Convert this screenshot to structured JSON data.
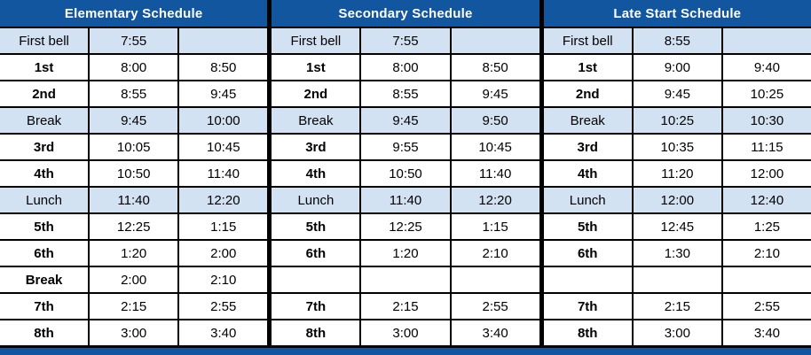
{
  "colors": {
    "header_bg": "#11569E",
    "header_text": "#FFFFFF",
    "highlight_bg": "#D3E2F3",
    "border": "#000000",
    "cell_text": "#000000"
  },
  "tables": [
    {
      "title": "Elementary Schedule",
      "rows": [
        {
          "label": "First bell",
          "start": "7:55",
          "end": "",
          "highlight": true,
          "bold": false
        },
        {
          "label": "1st",
          "start": "8:00",
          "end": "8:50",
          "highlight": false,
          "bold": true
        },
        {
          "label": "2nd",
          "start": "8:55",
          "end": "9:45",
          "highlight": false,
          "bold": true
        },
        {
          "label": "Break",
          "start": "9:45",
          "end": "10:00",
          "highlight": true,
          "bold": false
        },
        {
          "label": "3rd",
          "start": "10:05",
          "end": "10:45",
          "highlight": false,
          "bold": true
        },
        {
          "label": "4th",
          "start": "10:50",
          "end": "11:40",
          "highlight": false,
          "bold": true
        },
        {
          "label": "Lunch",
          "start": "11:40",
          "end": "12:20",
          "highlight": true,
          "bold": false
        },
        {
          "label": "5th",
          "start": "12:25",
          "end": "1:15",
          "highlight": false,
          "bold": true
        },
        {
          "label": "6th",
          "start": "1:20",
          "end": "2:00",
          "highlight": false,
          "bold": true
        },
        {
          "label": "Break",
          "start": "2:00",
          "end": "2:10",
          "highlight": false,
          "bold": true
        },
        {
          "label": "7th",
          "start": "2:15",
          "end": "2:55",
          "highlight": false,
          "bold": true
        },
        {
          "label": "8th",
          "start": "3:00",
          "end": "3:40",
          "highlight": false,
          "bold": true
        }
      ]
    },
    {
      "title": "Secondary Schedule",
      "rows": [
        {
          "label": "First bell",
          "start": "7:55",
          "end": "",
          "highlight": true,
          "bold": false
        },
        {
          "label": "1st",
          "start": "8:00",
          "end": "8:50",
          "highlight": false,
          "bold": true
        },
        {
          "label": "2nd",
          "start": "8:55",
          "end": "9:45",
          "highlight": false,
          "bold": true
        },
        {
          "label": "Break",
          "start": "9:45",
          "end": "9:50",
          "highlight": true,
          "bold": false
        },
        {
          "label": "3rd",
          "start": "9:55",
          "end": "10:45",
          "highlight": false,
          "bold": true
        },
        {
          "label": "4th",
          "start": "10:50",
          "end": "11:40",
          "highlight": false,
          "bold": true
        },
        {
          "label": "Lunch",
          "start": "11:40",
          "end": "12:20",
          "highlight": true,
          "bold": false
        },
        {
          "label": "5th",
          "start": "12:25",
          "end": "1:15",
          "highlight": false,
          "bold": true
        },
        {
          "label": "6th",
          "start": "1:20",
          "end": "2:10",
          "highlight": false,
          "bold": true
        },
        {
          "label": "",
          "start": "",
          "end": "",
          "highlight": false,
          "bold": false
        },
        {
          "label": "7th",
          "start": "2:15",
          "end": "2:55",
          "highlight": false,
          "bold": true
        },
        {
          "label": "8th",
          "start": "3:00",
          "end": "3:40",
          "highlight": false,
          "bold": true
        }
      ]
    },
    {
      "title": "Late Start Schedule",
      "rows": [
        {
          "label": "First bell",
          "start": "8:55",
          "end": "",
          "highlight": true,
          "bold": false
        },
        {
          "label": "1st",
          "start": "9:00",
          "end": "9:40",
          "highlight": false,
          "bold": true
        },
        {
          "label": "2nd",
          "start": "9:45",
          "end": "10:25",
          "highlight": false,
          "bold": true
        },
        {
          "label": "Break",
          "start": "10:25",
          "end": "10:30",
          "highlight": true,
          "bold": false
        },
        {
          "label": "3rd",
          "start": "10:35",
          "end": "11:15",
          "highlight": false,
          "bold": true
        },
        {
          "label": "4th",
          "start": "11:20",
          "end": "12:00",
          "highlight": false,
          "bold": true
        },
        {
          "label": "Lunch",
          "start": "12:00",
          "end": "12:40",
          "highlight": true,
          "bold": false
        },
        {
          "label": "5th",
          "start": "12:45",
          "end": "1:25",
          "highlight": false,
          "bold": true
        },
        {
          "label": "6th",
          "start": "1:30",
          "end": "2:10",
          "highlight": false,
          "bold": true
        },
        {
          "label": "",
          "start": "",
          "end": "",
          "highlight": false,
          "bold": false
        },
        {
          "label": "7th",
          "start": "2:15",
          "end": "2:55",
          "highlight": false,
          "bold": true
        },
        {
          "label": "8th",
          "start": "3:00",
          "end": "3:40",
          "highlight": false,
          "bold": true
        }
      ]
    }
  ]
}
